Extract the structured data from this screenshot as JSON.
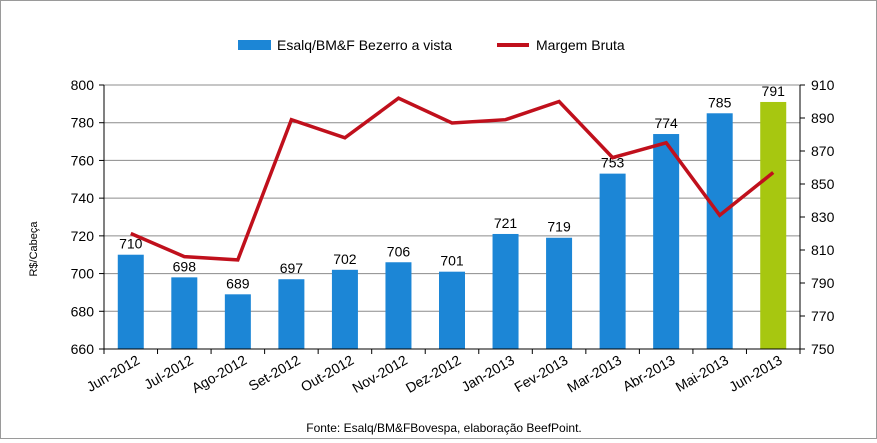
{
  "chart_data": {
    "type": "bar+line",
    "categories": [
      "Jun-2012",
      "Jul-2012",
      "Ago-2012",
      "Set-2012",
      "Out-2012",
      "Nov-2012",
      "Dez-2012",
      "Jan-2013",
      "Fev-2013",
      "Mar-2013",
      "Abr-2013",
      "Mai-2013",
      "Jun-2013"
    ],
    "series": [
      {
        "name": "Esalq/BM&F Bezerro a vista",
        "type": "bar",
        "axis": "left",
        "values": [
          710,
          698,
          689,
          697,
          702,
          706,
          701,
          721,
          719,
          753,
          774,
          785,
          791
        ],
        "labels": [
          "710",
          "698",
          "689",
          "697",
          "702",
          "706",
          "701",
          "721",
          "719",
          "753",
          "774",
          "785",
          "791"
        ],
        "color": "#1c86d6",
        "highlight_color": "#a7c710",
        "highlight_index": 12
      },
      {
        "name": "Margem Bruta",
        "type": "line",
        "axis": "right",
        "values": [
          820,
          806,
          804,
          889,
          878,
          902,
          887,
          889,
          900,
          866,
          875,
          831,
          857
        ],
        "color": "#c0101c"
      }
    ],
    "ylabel": "R$/Cabeça",
    "ylim": [
      660,
      800
    ],
    "y2lim": [
      750,
      910
    ],
    "yticks": [
      "660",
      "680",
      "700",
      "720",
      "740",
      "760",
      "780",
      "800"
    ],
    "y2ticks": [
      "750",
      "770",
      "790",
      "810",
      "830",
      "850",
      "870",
      "890",
      "910"
    ],
    "grid": true,
    "legend": "top-center"
  },
  "footer": "Fonte:  Esalq/BM&FBovespa,  elaboração  BeefPoint."
}
